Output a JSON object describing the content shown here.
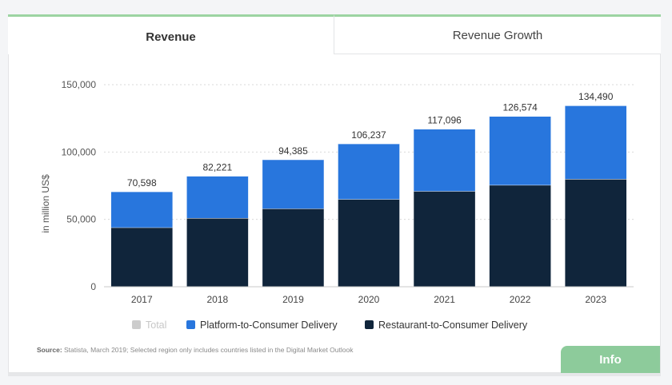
{
  "tabs": [
    {
      "label": "Revenue",
      "active": true
    },
    {
      "label": "Revenue Growth",
      "active": false
    }
  ],
  "chart_data": {
    "type": "bar",
    "stacked": true,
    "categories": [
      "2017",
      "2018",
      "2019",
      "2020",
      "2021",
      "2022",
      "2023"
    ],
    "series": [
      {
        "name": "Total",
        "values": [
          70598,
          82221,
          94385,
          106237,
          117096,
          126574,
          134490
        ],
        "color": "#cccccc",
        "visible": false
      },
      {
        "name": "Platform-to-Consumer Delivery",
        "values": [
          26598,
          31221,
          36385,
          41237,
          46096,
          51074,
          54490
        ],
        "color": "#2876dd"
      },
      {
        "name": "Restaurant-to-Consumer Delivery",
        "values": [
          44000,
          51000,
          58000,
          65000,
          71000,
          75500,
          80000
        ],
        "color": "#10253b"
      }
    ],
    "data_labels": [
      "70,598",
      "82,221",
      "94,385",
      "106,237",
      "117,096",
      "126,574",
      "134,490"
    ],
    "ylabel": "in million US$",
    "ylim": [
      0,
      150000
    ],
    "yticks": [
      0,
      50000,
      100000,
      150000
    ],
    "ytick_labels": [
      "0",
      "50,000",
      "100,000",
      "150,000"
    ],
    "grid": true,
    "legend_position": "bottom"
  },
  "source": {
    "label": "Source:",
    "text": " Statista, March 2019; Selected region only includes countries listed in the Digital Market Outlook"
  },
  "info_button": "Info"
}
